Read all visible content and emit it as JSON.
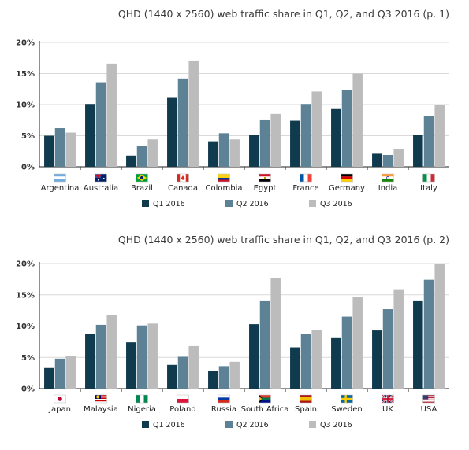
{
  "colors": {
    "q1": "#103a4d",
    "q2": "#5d8296",
    "q3": "#bcbcbc"
  },
  "chart_data": [
    {
      "type": "bar",
      "title": "QHD (1440 x 2560) web traffic share in Q1, Q2, and Q3 2016 (p. 1)",
      "ylim": [
        0,
        20
      ],
      "yticks": [
        "0%",
        "5%",
        "10%",
        "15%",
        "20%"
      ],
      "categories": [
        "Argentina",
        "Australia",
        "Brazil",
        "Canada",
        "Colombia",
        "Egypt",
        "France",
        "Germany",
        "India",
        "Italy"
      ],
      "flag_icons": [
        "flag-argentina-icon",
        "flag-australia-icon",
        "flag-brazil-icon",
        "flag-canada-icon",
        "flag-colombia-icon",
        "flag-egypt-icon",
        "flag-france-icon",
        "flag-germany-icon",
        "flag-india-icon",
        "flag-italy-icon"
      ],
      "series": [
        {
          "name": "Q1 2016",
          "values": [
            5.0,
            10.1,
            1.8,
            11.2,
            4.1,
            5.1,
            7.4,
            9.4,
            2.1,
            5.1
          ]
        },
        {
          "name": "Q2 2016",
          "values": [
            6.2,
            13.6,
            3.3,
            14.2,
            5.4,
            7.6,
            10.1,
            12.3,
            1.9,
            8.2
          ]
        },
        {
          "name": "Q3 2016",
          "values": [
            5.5,
            16.6,
            4.4,
            17.1,
            4.4,
            8.5,
            12.1,
            15.0,
            2.8,
            10.0
          ]
        }
      ],
      "legend": "bottom",
      "grid": true
    },
    {
      "type": "bar",
      "title": "QHD (1440 x 2560) web traffic share in Q1, Q2, and Q3 2016 (p. 2)",
      "ylim": [
        0,
        20
      ],
      "yticks": [
        "0%",
        "5%",
        "10%",
        "15%",
        "20%"
      ],
      "categories": [
        "Japan",
        "Malaysia",
        "Nigeria",
        "Poland",
        "Russia",
        "South Africa",
        "Spain",
        "Sweden",
        "UK",
        "USA"
      ],
      "flag_icons": [
        "flag-japan-icon",
        "flag-malaysia-icon",
        "flag-nigeria-icon",
        "flag-poland-icon",
        "flag-russia-icon",
        "flag-south-africa-icon",
        "flag-spain-icon",
        "flag-sweden-icon",
        "flag-uk-icon",
        "flag-usa-icon"
      ],
      "series": [
        {
          "name": "Q1 2016",
          "values": [
            3.3,
            8.8,
            7.4,
            3.8,
            2.8,
            10.3,
            6.6,
            8.2,
            9.3,
            14.1
          ]
        },
        {
          "name": "Q2 2016",
          "values": [
            4.8,
            10.2,
            10.1,
            5.1,
            3.6,
            14.1,
            8.8,
            11.5,
            12.7,
            17.4
          ]
        },
        {
          "name": "Q3 2016",
          "values": [
            5.2,
            11.8,
            10.4,
            6.8,
            4.3,
            17.7,
            9.4,
            14.7,
            15.9,
            20.0
          ]
        }
      ],
      "legend": "bottom",
      "grid": true
    }
  ]
}
